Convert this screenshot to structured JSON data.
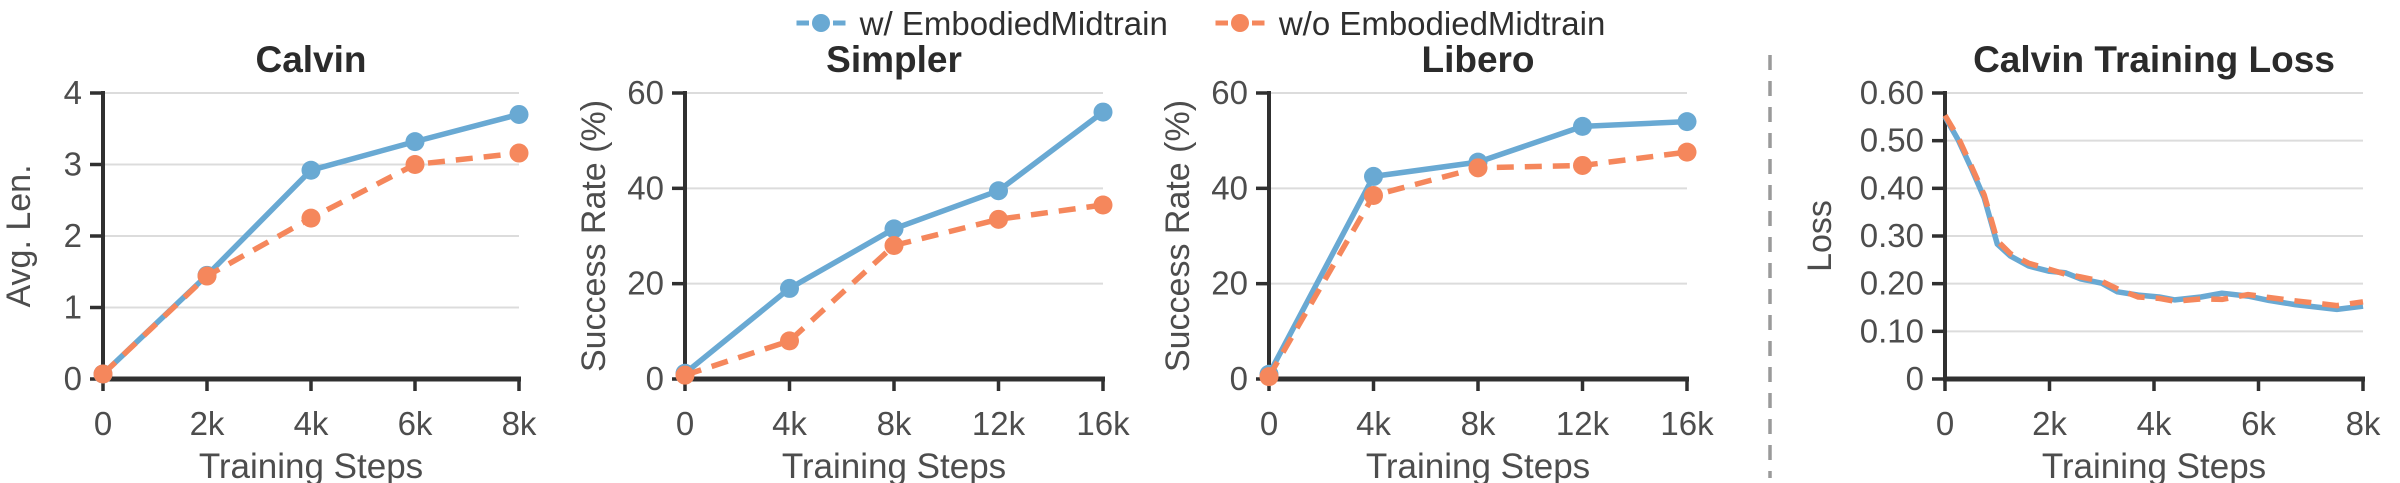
{
  "legend": {
    "items": [
      {
        "label": "w/ EmbodiedMidtrain",
        "color": "#69a9d3",
        "style": "solid"
      },
      {
        "label": "w/o EmbodiedMidtrain",
        "color": "#f5875c",
        "style": "dashed"
      }
    ]
  },
  "colors": {
    "blue": "#69a9d3",
    "orange": "#f5875c",
    "grid": "#dcdcdc",
    "spine": "#303030",
    "tick_text": "#4d4d4d",
    "title_text": "#2b2b2b",
    "divider": "#9a9a9a"
  },
  "chart_data": [
    {
      "type": "line",
      "title": "Calvin",
      "xlabel": "Training Steps",
      "ylabel": "Avg. Len.",
      "xticks": [
        0,
        2000,
        4000,
        6000,
        8000
      ],
      "xtick_labels": [
        "0",
        "2k",
        "4k",
        "6k",
        "8k"
      ],
      "ylim": [
        0,
        4
      ],
      "yticks": [
        0,
        1,
        2,
        3,
        4
      ],
      "ytick_labels": [
        "0",
        "1",
        "2",
        "3",
        "4"
      ],
      "grid": "horizontal",
      "markers": true,
      "legend_position": "figure-top",
      "series": [
        {
          "name": "w/ EmbodiedMidtrain",
          "color": "#69a9d3",
          "dash": "solid",
          "values": [
            0.07,
            1.45,
            2.92,
            3.32,
            3.7
          ]
        },
        {
          "name": "w/o EmbodiedMidtrain",
          "color": "#f5875c",
          "dash": "dashed",
          "values": [
            0.07,
            1.44,
            2.25,
            3.0,
            3.16
          ]
        }
      ]
    },
    {
      "type": "line",
      "title": "Simpler",
      "xlabel": "Training Steps",
      "ylabel": "Success Rate (%)",
      "xticks": [
        0,
        4000,
        8000,
        12000,
        16000
      ],
      "xtick_labels": [
        "0",
        "4k",
        "8k",
        "12k",
        "16k"
      ],
      "ylim": [
        0,
        60
      ],
      "yticks": [
        0,
        20,
        40,
        60
      ],
      "ytick_labels": [
        "0",
        "20",
        "40",
        "60"
      ],
      "grid": "horizontal",
      "markers": true,
      "series": [
        {
          "name": "w/ EmbodiedMidtrain",
          "color": "#69a9d3",
          "dash": "solid",
          "values": [
            1.2,
            19.0,
            31.5,
            39.5,
            56.0
          ]
        },
        {
          "name": "w/o EmbodiedMidtrain",
          "color": "#f5875c",
          "dash": "dashed",
          "values": [
            0.8,
            8.0,
            28.0,
            33.5,
            36.5
          ]
        }
      ]
    },
    {
      "type": "line",
      "title": "Libero",
      "xlabel": "Training Steps",
      "ylabel": "Success Rate (%)",
      "xticks": [
        0,
        4000,
        8000,
        12000,
        16000
      ],
      "xtick_labels": [
        "0",
        "4k",
        "8k",
        "12k",
        "16k"
      ],
      "ylim": [
        0,
        60
      ],
      "yticks": [
        0,
        20,
        40,
        60
      ],
      "ytick_labels": [
        "0",
        "20",
        "40",
        "60"
      ],
      "grid": "horizontal",
      "markers": true,
      "series": [
        {
          "name": "w/ EmbodiedMidtrain",
          "color": "#69a9d3",
          "dash": "solid",
          "values": [
            1.0,
            42.5,
            45.5,
            53.0,
            54.0
          ]
        },
        {
          "name": "w/o EmbodiedMidtrain",
          "color": "#f5875c",
          "dash": "dashed",
          "values": [
            0.5,
            38.5,
            44.3,
            44.8,
            47.6
          ]
        }
      ]
    },
    {
      "type": "line",
      "title": "Calvin Training Loss",
      "xlabel": "Training Steps",
      "ylabel": "Loss",
      "xticks": [
        0,
        2000,
        4000,
        6000,
        8000
      ],
      "xtick_labels": [
        "0",
        "2k",
        "4k",
        "6k",
        "8k"
      ],
      "ylim": [
        0,
        0.6
      ],
      "yticks": [
        0,
        0.1,
        0.2,
        0.3,
        0.4,
        0.5,
        0.6
      ],
      "ytick_labels": [
        "0",
        "0.10",
        "0.20",
        "0.30",
        "0.40",
        "0.50",
        "0.60"
      ],
      "grid": "horizontal",
      "markers": false,
      "series": [
        {
          "name": "w/ EmbodiedMidtrain",
          "color": "#69a9d3",
          "dash": "solid",
          "x": [
            0,
            250,
            500,
            750,
            1000,
            1250,
            1600,
            2000,
            2300,
            2600,
            3000,
            3300,
            3700,
            4100,
            4400,
            4900,
            5300,
            5800,
            6200,
            6700,
            7100,
            7500,
            8000
          ],
          "values": [
            0.55,
            0.502,
            0.443,
            0.38,
            0.283,
            0.258,
            0.237,
            0.226,
            0.223,
            0.21,
            0.201,
            0.183,
            0.176,
            0.172,
            0.166,
            0.172,
            0.18,
            0.174,
            0.165,
            0.156,
            0.151,
            0.146,
            0.153
          ]
        },
        {
          "name": "w/o EmbodiedMidtrain",
          "color": "#f5875c",
          "dash": "dashed",
          "x": [
            0,
            250,
            500,
            750,
            1000,
            1250,
            1600,
            2000,
            2300,
            2600,
            3000,
            3300,
            3700,
            4100,
            4400,
            4900,
            5300,
            5800,
            6200,
            6700,
            7100,
            7500,
            8000
          ],
          "values": [
            0.553,
            0.507,
            0.448,
            0.386,
            0.29,
            0.263,
            0.243,
            0.23,
            0.22,
            0.214,
            0.205,
            0.189,
            0.172,
            0.169,
            0.163,
            0.168,
            0.167,
            0.177,
            0.171,
            0.164,
            0.159,
            0.154,
            0.162
          ]
        }
      ]
    }
  ]
}
